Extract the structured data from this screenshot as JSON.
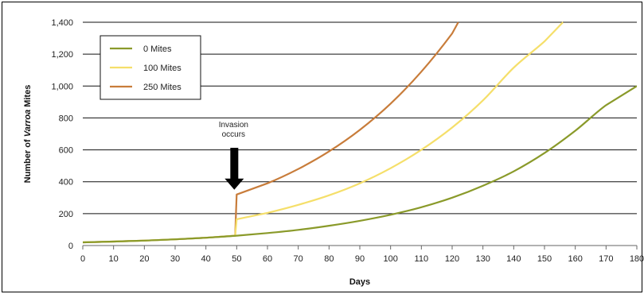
{
  "chart_data": {
    "type": "line",
    "title": "",
    "xlabel": "Days",
    "ylabel_parts": [
      "Number of ",
      "Varroa",
      " Mites"
    ],
    "xlim": [
      0,
      180
    ],
    "ylim": [
      0,
      1400
    ],
    "xticks": [
      0,
      10,
      20,
      30,
      40,
      50,
      60,
      70,
      80,
      90,
      100,
      110,
      120,
      130,
      140,
      150,
      160,
      170,
      180
    ],
    "yticks": [
      0,
      200,
      400,
      600,
      800,
      1000,
      1200,
      1400
    ],
    "ytick_labels": [
      "0",
      "200",
      "400",
      "600",
      "800",
      "1,000",
      "1,200",
      "1,400"
    ],
    "grid": "horizontal",
    "legend_position": "top-left",
    "series": [
      {
        "name": "0 Mites",
        "color": "#8a9a2a",
        "points": [
          [
            0,
            20
          ],
          [
            10,
            25
          ],
          [
            20,
            31
          ],
          [
            30,
            39
          ],
          [
            40,
            49
          ],
          [
            50,
            62
          ],
          [
            60,
            78
          ],
          [
            70,
            98
          ],
          [
            80,
            124
          ],
          [
            90,
            155
          ],
          [
            100,
            193
          ],
          [
            110,
            240
          ],
          [
            120,
            300
          ],
          [
            130,
            375
          ],
          [
            140,
            465
          ],
          [
            150,
            580
          ],
          [
            160,
            720
          ],
          [
            170,
            880
          ],
          [
            180,
            1000
          ]
        ]
      },
      {
        "name": "100 Mites",
        "color": "#f5df6a",
        "points": [
          [
            0,
            20
          ],
          [
            10,
            25
          ],
          [
            20,
            31
          ],
          [
            30,
            39
          ],
          [
            40,
            49
          ],
          [
            49.5,
            62
          ],
          [
            50,
            165
          ],
          [
            60,
            205
          ],
          [
            70,
            255
          ],
          [
            80,
            315
          ],
          [
            90,
            390
          ],
          [
            100,
            485
          ],
          [
            110,
            600
          ],
          [
            120,
            740
          ],
          [
            130,
            910
          ],
          [
            140,
            1115
          ],
          [
            150,
            1280
          ],
          [
            156,
            1400
          ]
        ]
      },
      {
        "name": "250 Mites",
        "color": "#c87c3a",
        "points": [
          [
            0,
            20
          ],
          [
            10,
            25
          ],
          [
            20,
            31
          ],
          [
            30,
            39
          ],
          [
            40,
            49
          ],
          [
            49.5,
            62
          ],
          [
            50,
            320
          ],
          [
            60,
            390
          ],
          [
            70,
            480
          ],
          [
            80,
            590
          ],
          [
            90,
            725
          ],
          [
            100,
            890
          ],
          [
            110,
            1090
          ],
          [
            120,
            1330
          ],
          [
            122,
            1400
          ]
        ]
      }
    ],
    "annotations": [
      {
        "text_lines": [
          "Invasion",
          "occurs"
        ],
        "x": 50,
        "y": 320
      }
    ]
  }
}
